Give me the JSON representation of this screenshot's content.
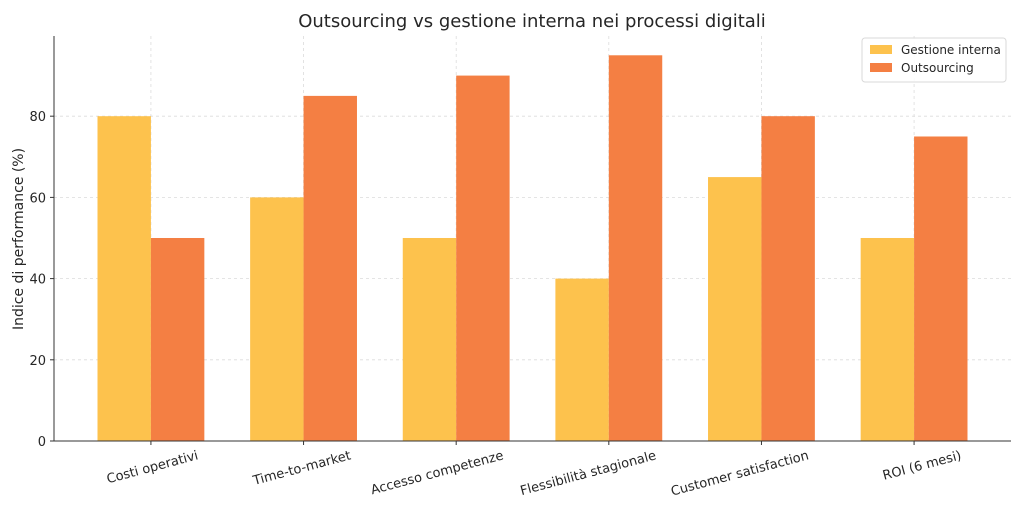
{
  "chart_data": {
    "type": "bar",
    "title": "Outsourcing vs gestione interna nei processi digitali",
    "xlabel": "",
    "ylabel": "Indice di performance (%)",
    "categories": [
      "Costi operativi",
      "Time-to-market",
      "Accesso competenze",
      "Flessibilità stagionale",
      "Customer satisfaction",
      "ROI (6 mesi)"
    ],
    "series": [
      {
        "name": "Gestione interna",
        "values": [
          80,
          60,
          50,
          40,
          65,
          50
        ],
        "color": "#FDC24D"
      },
      {
        "name": "Outsourcing",
        "values": [
          50,
          85,
          90,
          95,
          80,
          75
        ],
        "color": "#F47F43"
      }
    ],
    "ylim": [
      0,
      99.75
    ],
    "yticks": [
      "0",
      "20",
      "40",
      "60",
      "80"
    ],
    "grid": true,
    "legend": "top-right",
    "xtick_rotation": 15
  }
}
